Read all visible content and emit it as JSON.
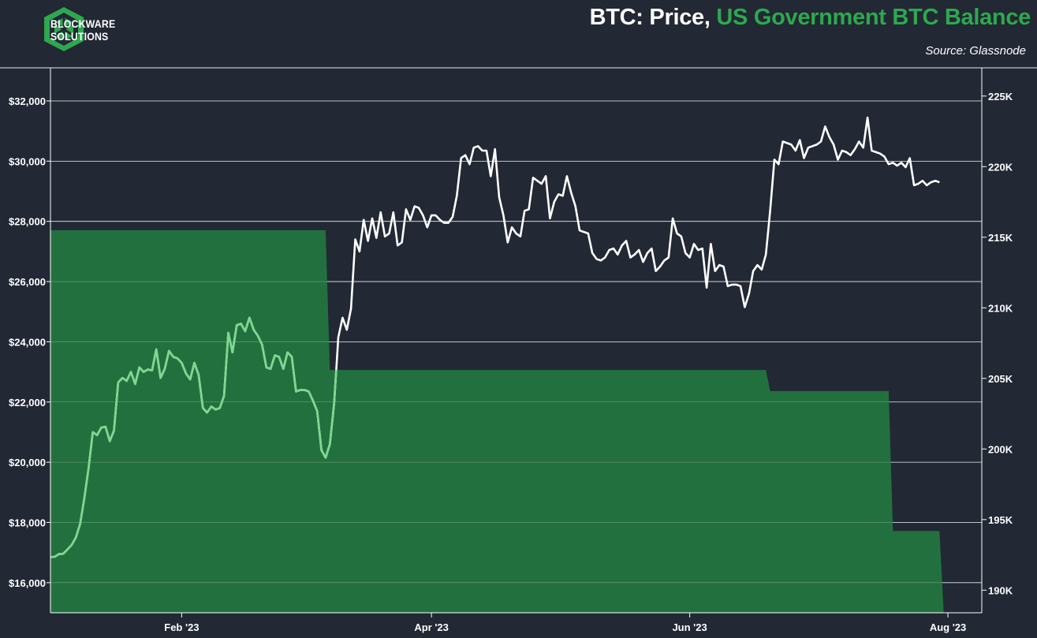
{
  "brand": {
    "line1": "BLOCKWARE",
    "line2": "SOLUTIONS"
  },
  "header": {
    "title_part1": "BTC: Price,",
    "title_part2": "US Government BTC Balance",
    "source": "Source: Glassnode"
  },
  "colors": {
    "background": "#222834",
    "price_line": "#ffffff",
    "balance_fill": "#23703f",
    "accent_green": "#2ea84f",
    "price_over_fill": "#7dd88f"
  },
  "chart_data": {
    "type": "line+area",
    "title": "BTC: Price, US Government BTC Balance",
    "x_range": [
      "2023-01-01",
      "2023-08-09"
    ],
    "x_ticks": [
      {
        "date": "2023-02-01",
        "label": "Feb '23"
      },
      {
        "date": "2023-04-01",
        "label": "Apr '23"
      },
      {
        "date": "2023-06-01",
        "label": "Jun '23"
      },
      {
        "date": "2023-08-01",
        "label": "Aug '23"
      }
    ],
    "y_left": {
      "min": 15000,
      "max": 33100,
      "ticks": [
        16000,
        18000,
        20000,
        22000,
        24000,
        26000,
        28000,
        30000,
        32000
      ],
      "labels": [
        "$16,000",
        "$18,000",
        "$20,000",
        "$22,000",
        "$24,000",
        "$26,000",
        "$28,000",
        "$30,000",
        "$32,000"
      ]
    },
    "y_right": {
      "min": 188400,
      "max": 227000,
      "ticks": [
        190000,
        195000,
        200000,
        205000,
        210000,
        215000,
        220000,
        225000
      ],
      "labels": [
        "190K",
        "195K",
        "200K",
        "205K",
        "210K",
        "215K",
        "220K",
        "225K"
      ]
    },
    "grid": true,
    "series": [
      {
        "name": "BTC Price",
        "axis": "left",
        "points": [
          [
            "2023-01-01",
            16850
          ],
          [
            "2023-01-02",
            16860
          ],
          [
            "2023-01-03",
            16950
          ],
          [
            "2023-01-04",
            16960
          ],
          [
            "2023-01-05",
            17100
          ],
          [
            "2023-01-06",
            17250
          ],
          [
            "2023-01-07",
            17500
          ],
          [
            "2023-01-08",
            17950
          ],
          [
            "2023-01-09",
            18800
          ],
          [
            "2023-01-10",
            19800
          ],
          [
            "2023-01-11",
            21000
          ],
          [
            "2023-01-12",
            20900
          ],
          [
            "2023-01-13",
            21150
          ],
          [
            "2023-01-14",
            21180
          ],
          [
            "2023-01-15",
            20700
          ],
          [
            "2023-01-16",
            21050
          ],
          [
            "2023-01-17",
            22650
          ],
          [
            "2023-01-18",
            22800
          ],
          [
            "2023-01-19",
            22700
          ],
          [
            "2023-01-20",
            23000
          ],
          [
            "2023-01-21",
            22600
          ],
          [
            "2023-01-22",
            23150
          ],
          [
            "2023-01-23",
            23000
          ],
          [
            "2023-01-24",
            23080
          ],
          [
            "2023-01-25",
            23050
          ],
          [
            "2023-01-26",
            23750
          ],
          [
            "2023-01-27",
            22800
          ],
          [
            "2023-01-28",
            23100
          ],
          [
            "2023-01-29",
            23700
          ],
          [
            "2023-01-30",
            23500
          ],
          [
            "2023-01-31",
            23450
          ],
          [
            "2023-02-01",
            23300
          ],
          [
            "2023-02-02",
            22950
          ],
          [
            "2023-02-03",
            22750
          ],
          [
            "2023-02-04",
            23300
          ],
          [
            "2023-02-05",
            22900
          ],
          [
            "2023-02-06",
            21800
          ],
          [
            "2023-02-07",
            21650
          ],
          [
            "2023-02-08",
            21850
          ],
          [
            "2023-02-09",
            21750
          ],
          [
            "2023-02-10",
            21800
          ],
          [
            "2023-02-11",
            22200
          ],
          [
            "2023-02-12",
            24300
          ],
          [
            "2023-02-13",
            23650
          ],
          [
            "2023-02-14",
            24550
          ],
          [
            "2023-02-15",
            24600
          ],
          [
            "2023-02-16",
            24350
          ],
          [
            "2023-02-17",
            24800
          ],
          [
            "2023-02-18",
            24400
          ],
          [
            "2023-02-19",
            24200
          ],
          [
            "2023-02-20",
            23900
          ],
          [
            "2023-02-21",
            23150
          ],
          [
            "2023-02-22",
            23100
          ],
          [
            "2023-02-23",
            23550
          ],
          [
            "2023-02-24",
            23500
          ],
          [
            "2023-02-25",
            23100
          ],
          [
            "2023-02-26",
            23650
          ],
          [
            "2023-02-27",
            23500
          ],
          [
            "2023-02-28",
            22350
          ],
          [
            "2023-03-01",
            22400
          ],
          [
            "2023-03-02",
            22400
          ],
          [
            "2023-03-03",
            22350
          ],
          [
            "2023-03-04",
            22050
          ],
          [
            "2023-03-05",
            21700
          ],
          [
            "2023-03-06",
            20400
          ],
          [
            "2023-03-07",
            20150
          ],
          [
            "2023-03-08",
            20600
          ],
          [
            "2023-03-09",
            21950
          ],
          [
            "2023-03-10",
            24150
          ],
          [
            "2023-03-11",
            24800
          ],
          [
            "2023-03-12",
            24400
          ],
          [
            "2023-03-13",
            25100
          ],
          [
            "2023-03-14",
            27400
          ],
          [
            "2023-03-15",
            27000
          ],
          [
            "2023-03-16",
            28050
          ],
          [
            "2023-03-17",
            27350
          ],
          [
            "2023-03-18",
            28100
          ],
          [
            "2023-03-19",
            27450
          ],
          [
            "2023-03-20",
            28300
          ],
          [
            "2023-03-21",
            27500
          ],
          [
            "2023-03-22",
            27600
          ],
          [
            "2023-03-23",
            28300
          ],
          [
            "2023-03-24",
            27200
          ],
          [
            "2023-03-25",
            27300
          ],
          [
            "2023-03-26",
            28400
          ],
          [
            "2023-03-27",
            28050
          ],
          [
            "2023-03-28",
            28500
          ],
          [
            "2023-03-29",
            28450
          ],
          [
            "2023-03-30",
            28200
          ],
          [
            "2023-03-31",
            27800
          ],
          [
            "2023-04-01",
            28200
          ],
          [
            "2023-04-02",
            28200
          ],
          [
            "2023-04-03",
            28050
          ],
          [
            "2023-04-04",
            27950
          ],
          [
            "2023-04-05",
            27950
          ],
          [
            "2023-04-06",
            28150
          ],
          [
            "2023-04-07",
            28850
          ],
          [
            "2023-04-08",
            30100
          ],
          [
            "2023-04-09",
            30200
          ],
          [
            "2023-04-10",
            29900
          ],
          [
            "2023-04-11",
            30450
          ],
          [
            "2023-04-12",
            30500
          ],
          [
            "2023-04-13",
            30350
          ],
          [
            "2023-04-14",
            30350
          ],
          [
            "2023-04-15",
            29500
          ],
          [
            "2023-04-16",
            30400
          ],
          [
            "2023-04-17",
            28800
          ],
          [
            "2023-04-18",
            28200
          ],
          [
            "2023-04-19",
            27300
          ],
          [
            "2023-04-20",
            27800
          ],
          [
            "2023-04-21",
            27600
          ],
          [
            "2023-04-22",
            27500
          ],
          [
            "2023-04-23",
            28350
          ],
          [
            "2023-04-24",
            28400
          ],
          [
            "2023-04-25",
            29450
          ],
          [
            "2023-04-26",
            29350
          ],
          [
            "2023-04-27",
            29250
          ],
          [
            "2023-04-28",
            29500
          ],
          [
            "2023-04-29",
            28100
          ],
          [
            "2023-04-30",
            28650
          ],
          [
            "2023-05-01",
            28900
          ],
          [
            "2023-05-02",
            28850
          ],
          [
            "2023-05-03",
            29500
          ],
          [
            "2023-05-04",
            28950
          ],
          [
            "2023-05-05",
            28500
          ],
          [
            "2023-05-06",
            27700
          ],
          [
            "2023-05-07",
            27650
          ],
          [
            "2023-05-08",
            27600
          ],
          [
            "2023-05-09",
            26950
          ],
          [
            "2023-05-10",
            26750
          ],
          [
            "2023-05-11",
            26700
          ],
          [
            "2023-05-12",
            26800
          ],
          [
            "2023-05-13",
            27050
          ],
          [
            "2023-05-14",
            27100
          ],
          [
            "2023-05-15",
            26900
          ],
          [
            "2023-05-16",
            27200
          ],
          [
            "2023-05-17",
            27350
          ],
          [
            "2023-05-18",
            26800
          ],
          [
            "2023-05-19",
            26900
          ],
          [
            "2023-05-20",
            27050
          ],
          [
            "2023-05-21",
            26650
          ],
          [
            "2023-05-22",
            26950
          ],
          [
            "2023-05-23",
            27100
          ],
          [
            "2023-05-24",
            26350
          ],
          [
            "2023-05-25",
            26500
          ],
          [
            "2023-05-26",
            26700
          ],
          [
            "2023-05-27",
            26800
          ],
          [
            "2023-05-28",
            28100
          ],
          [
            "2023-05-29",
            27600
          ],
          [
            "2023-05-30",
            27500
          ],
          [
            "2023-05-31",
            26950
          ],
          [
            "2023-06-01",
            26800
          ],
          [
            "2023-06-02",
            27250
          ],
          [
            "2023-06-03",
            27050
          ],
          [
            "2023-06-04",
            27100
          ],
          [
            "2023-06-05",
            25800
          ],
          [
            "2023-06-06",
            27250
          ],
          [
            "2023-06-07",
            26350
          ],
          [
            "2023-06-08",
            26550
          ],
          [
            "2023-06-09",
            26500
          ],
          [
            "2023-06-10",
            25850
          ],
          [
            "2023-06-11",
            25900
          ],
          [
            "2023-06-12",
            25900
          ],
          [
            "2023-06-13",
            25850
          ],
          [
            "2023-06-14",
            25150
          ],
          [
            "2023-06-15",
            25600
          ],
          [
            "2023-06-16",
            26350
          ],
          [
            "2023-06-17",
            26550
          ],
          [
            "2023-06-18",
            26400
          ],
          [
            "2023-06-19",
            26900
          ],
          [
            "2023-06-20",
            28350
          ],
          [
            "2023-06-21",
            30050
          ],
          [
            "2023-06-22",
            29900
          ],
          [
            "2023-06-23",
            30650
          ],
          [
            "2023-06-24",
            30600
          ],
          [
            "2023-06-25",
            30550
          ],
          [
            "2023-06-26",
            30350
          ],
          [
            "2023-06-27",
            30700
          ],
          [
            "2023-06-28",
            30100
          ],
          [
            "2023-06-29",
            30450
          ],
          [
            "2023-06-30",
            30500
          ],
          [
            "2023-07-01",
            30550
          ],
          [
            "2023-07-02",
            30650
          ],
          [
            "2023-07-03",
            31150
          ],
          [
            "2023-07-04",
            30800
          ],
          [
            "2023-07-05",
            30550
          ],
          [
            "2023-07-06",
            30050
          ],
          [
            "2023-07-07",
            30350
          ],
          [
            "2023-07-08",
            30300
          ],
          [
            "2023-07-09",
            30200
          ],
          [
            "2023-07-10",
            30400
          ],
          [
            "2023-07-11",
            30650
          ],
          [
            "2023-07-12",
            30450
          ],
          [
            "2023-07-13",
            31450
          ],
          [
            "2023-07-14",
            30350
          ],
          [
            "2023-07-15",
            30300
          ],
          [
            "2023-07-16",
            30250
          ],
          [
            "2023-07-17",
            30150
          ],
          [
            "2023-07-18",
            29900
          ],
          [
            "2023-07-19",
            29950
          ],
          [
            "2023-07-20",
            29850
          ],
          [
            "2023-07-21",
            29950
          ],
          [
            "2023-07-22",
            29800
          ],
          [
            "2023-07-23",
            30100
          ],
          [
            "2023-07-24",
            29200
          ],
          [
            "2023-07-25",
            29250
          ],
          [
            "2023-07-26",
            29350
          ],
          [
            "2023-07-27",
            29200
          ],
          [
            "2023-07-28",
            29300
          ],
          [
            "2023-07-29",
            29350
          ],
          [
            "2023-07-30",
            29300
          ]
        ]
      },
      {
        "name": "US Government BTC Balance",
        "axis": "right",
        "type": "area",
        "points": [
          [
            "2023-01-01",
            215500
          ],
          [
            "2023-03-07",
            215500
          ],
          [
            "2023-03-08",
            205600
          ],
          [
            "2023-06-19",
            205600
          ],
          [
            "2023-06-20",
            204100
          ],
          [
            "2023-07-18",
            204100
          ],
          [
            "2023-07-19",
            194200
          ],
          [
            "2023-07-30",
            194200
          ],
          [
            "2023-07-31",
            188400
          ]
        ]
      }
    ]
  }
}
